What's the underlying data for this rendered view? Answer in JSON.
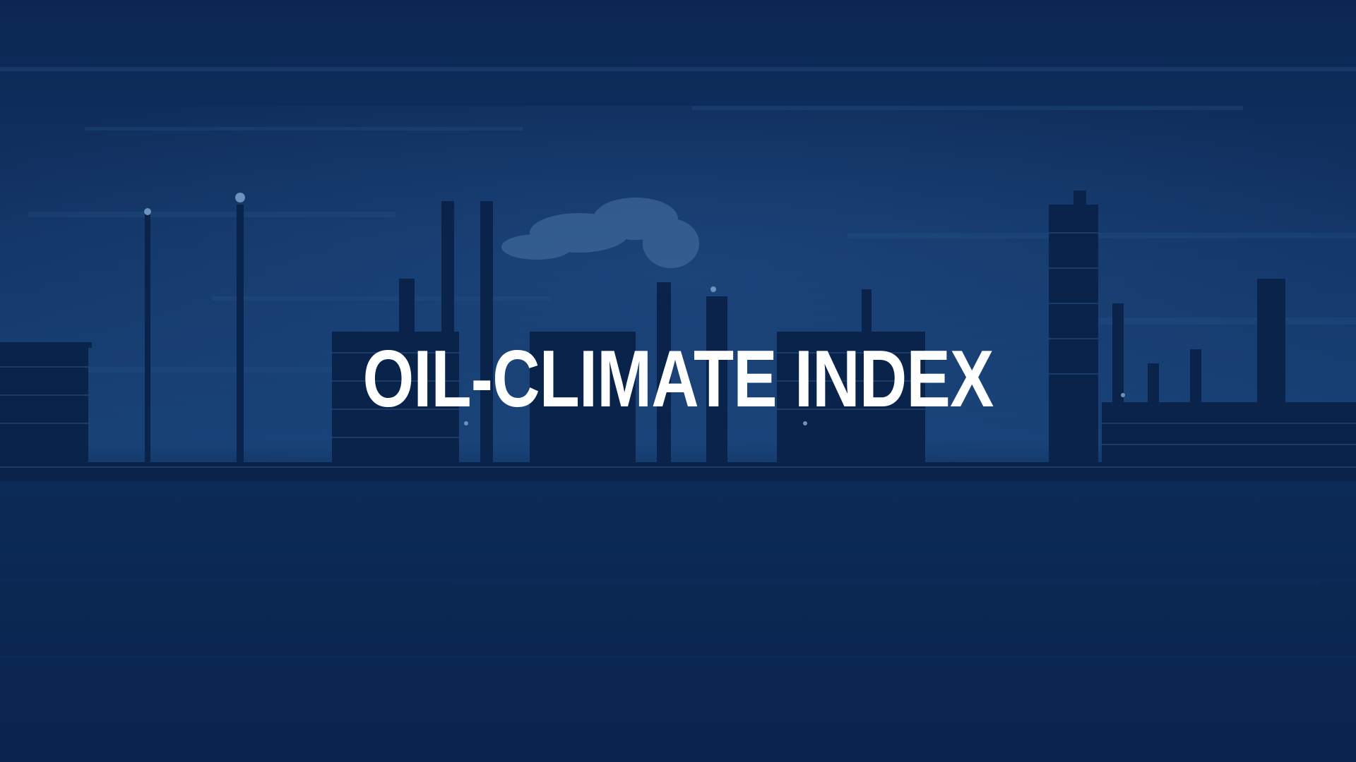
{
  "hero": {
    "title": "OIL-CLIMATE INDEX",
    "background_image": "refinery-silhouette-at-dusk",
    "overlay_color": "#0c2a57",
    "text_color": "#ffffff"
  }
}
